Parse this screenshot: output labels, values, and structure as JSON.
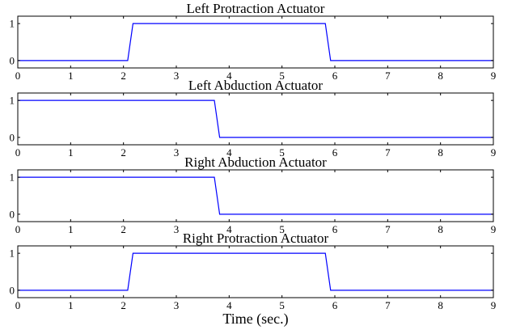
{
  "chart_data": [
    {
      "type": "line",
      "title": "Left Protraction Actuator",
      "xlim": [
        0,
        9
      ],
      "ylim": [
        -0.2,
        1.2
      ],
      "xticks": [
        "0",
        "1",
        "2",
        "3",
        "4",
        "5",
        "6",
        "7",
        "8",
        "9"
      ],
      "yticks": [
        "0",
        "1"
      ],
      "grid": false,
      "series": [
        {
          "color": "#0000ff",
          "x": [
            0,
            2.08,
            2.18,
            5.82,
            5.92,
            9
          ],
          "y": [
            0,
            0,
            1,
            1,
            0,
            0
          ]
        }
      ]
    },
    {
      "type": "line",
      "title": "Left Abduction Actuator",
      "xlim": [
        0,
        9
      ],
      "ylim": [
        -0.2,
        1.2
      ],
      "xticks": [
        "0",
        "1",
        "2",
        "3",
        "4",
        "5",
        "6",
        "7",
        "8",
        "9"
      ],
      "yticks": [
        "0",
        "1"
      ],
      "grid": false,
      "series": [
        {
          "color": "#0000ff",
          "x": [
            0,
            3.72,
            3.82,
            9
          ],
          "y": [
            1,
            1,
            0,
            0
          ]
        }
      ]
    },
    {
      "type": "line",
      "title": "Right Abduction Actuator",
      "xlim": [
        0,
        9
      ],
      "ylim": [
        -0.2,
        1.2
      ],
      "xticks": [
        "0",
        "1",
        "2",
        "3",
        "4",
        "5",
        "6",
        "7",
        "8",
        "9"
      ],
      "yticks": [
        "0",
        "1"
      ],
      "grid": false,
      "series": [
        {
          "color": "#0000ff",
          "x": [
            0,
            3.72,
            3.82,
            9
          ],
          "y": [
            1,
            1,
            0,
            0
          ]
        }
      ]
    },
    {
      "type": "line",
      "title": "Right Protraction Actuator",
      "xlim": [
        0,
        9
      ],
      "ylim": [
        -0.2,
        1.2
      ],
      "xticks": [
        "0",
        "1",
        "2",
        "3",
        "4",
        "5",
        "6",
        "7",
        "8",
        "9"
      ],
      "yticks": [
        "0",
        "1"
      ],
      "grid": false,
      "xlabel": "Time (sec.)",
      "series": [
        {
          "color": "#0000ff",
          "x": [
            0,
            2.08,
            2.18,
            5.82,
            5.92,
            9
          ],
          "y": [
            0,
            0,
            1,
            1,
            0,
            0
          ]
        }
      ]
    }
  ]
}
